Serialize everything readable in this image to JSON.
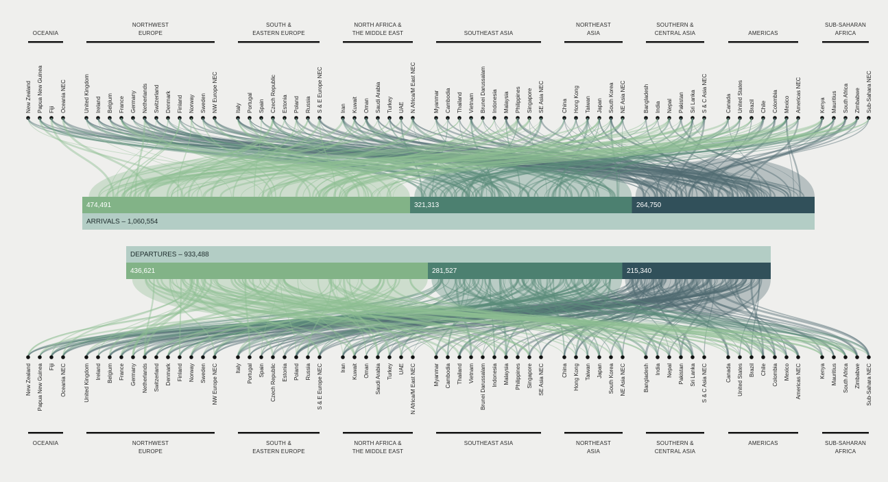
{
  "colors": {
    "background": "#efefed",
    "seg_1": "#82b387",
    "seg_2": "#4c8070",
    "seg_3": "#31505a",
    "total_bar": "#b3cdc5",
    "flow_1": "#8fbe92",
    "flow_2": "#5a8c7b",
    "flow_3": "#4f6a70",
    "dot": "#111111",
    "region_rule": "#111111"
  },
  "regions": [
    {
      "name": "OCEANIA",
      "countries": [
        "New Zealand",
        "Papua New Guinea",
        "Fiji",
        "Oceania NEC"
      ]
    },
    {
      "name": "NORTHWEST EUROPE",
      "countries": [
        "United Kingdom",
        "Ireland",
        "Belgium",
        "France",
        "Germany",
        "Netherlands",
        "Switzerland",
        "Denmark",
        "Finland",
        "Norway",
        "Sweden",
        "NW Europe NEC"
      ]
    },
    {
      "name": "SOUTH & EASTERN EUROPE",
      "countries": [
        "Italy",
        "Portugal",
        "Spain",
        "Czech Republic",
        "Estonia",
        "Poland",
        "Russia",
        "S & E Europe NEC"
      ]
    },
    {
      "name": "NORTH AFRICA & THE MIDDLE EAST",
      "countries": [
        "Iran",
        "Kuwait",
        "Oman",
        "Saudi Arabia",
        "Turkey",
        "UAE",
        "N Africa/M East NEC"
      ]
    },
    {
      "name": "SOUTHEAST ASIA",
      "countries": [
        "Myanmar",
        "Cambodia",
        "Thailand",
        "Vietnam",
        "Brunei Darussalam",
        "Indonesia",
        "Malaysia",
        "Philippines",
        "Singapore",
        "SE Asia NEC"
      ]
    },
    {
      "name": "NORTHEAST ASIA",
      "countries": [
        "China",
        "Hong Kong",
        "Taiwan",
        "Japan",
        "South Korea",
        "NE Asia NEC"
      ]
    },
    {
      "name": "SOUTHERN & CENTRAL ASIA",
      "countries": [
        "Bangladesh",
        "India",
        "Nepal",
        "Pakistan",
        "Sri Lanka",
        "S & C Asia NEC"
      ]
    },
    {
      "name": "AMERICAS",
      "countries": [
        "Canada",
        "United States",
        "Brazil",
        "Chile",
        "Colombia",
        "Mexico",
        "Americas NEC"
      ]
    },
    {
      "name": "SUB-SAHARAN AFRICA",
      "countries": [
        "Kenya",
        "Mauritius",
        "South Africa",
        "Zimbabwe",
        "Sub-Sahara NEC"
      ]
    }
  ],
  "region_label_lines": [
    [
      "OCEANIA"
    ],
    [
      "NORTHWEST",
      "EUROPE"
    ],
    [
      "SOUTH &",
      "EASTERN EUROPE"
    ],
    [
      "NORTH AFRICA &",
      "THE MIDDLE EAST"
    ],
    [
      "SOUTHEAST ASIA"
    ],
    [
      "NORTHEAST",
      "ASIA"
    ],
    [
      "SOUTHERN &",
      "CENTRAL ASIA"
    ],
    [
      "AMERICAS"
    ],
    [
      "SUB-SAHARAN",
      "AFRICA"
    ]
  ],
  "arrivals": {
    "total_label": "ARRIVALS – 1,060,554",
    "total": 1060554,
    "segments": [
      {
        "value": 474491,
        "label": "474,491"
      },
      {
        "value": 321313,
        "label": "321,313"
      },
      {
        "value": 264750,
        "label": "264,750"
      }
    ]
  },
  "departures": {
    "total_label": "DEPARTURES – 933,488",
    "total": 933488,
    "segments": [
      {
        "value": 436621,
        "label": "436,621"
      },
      {
        "value": 281527,
        "label": "281,527"
      },
      {
        "value": 215340,
        "label": "215,340"
      }
    ]
  }
}
